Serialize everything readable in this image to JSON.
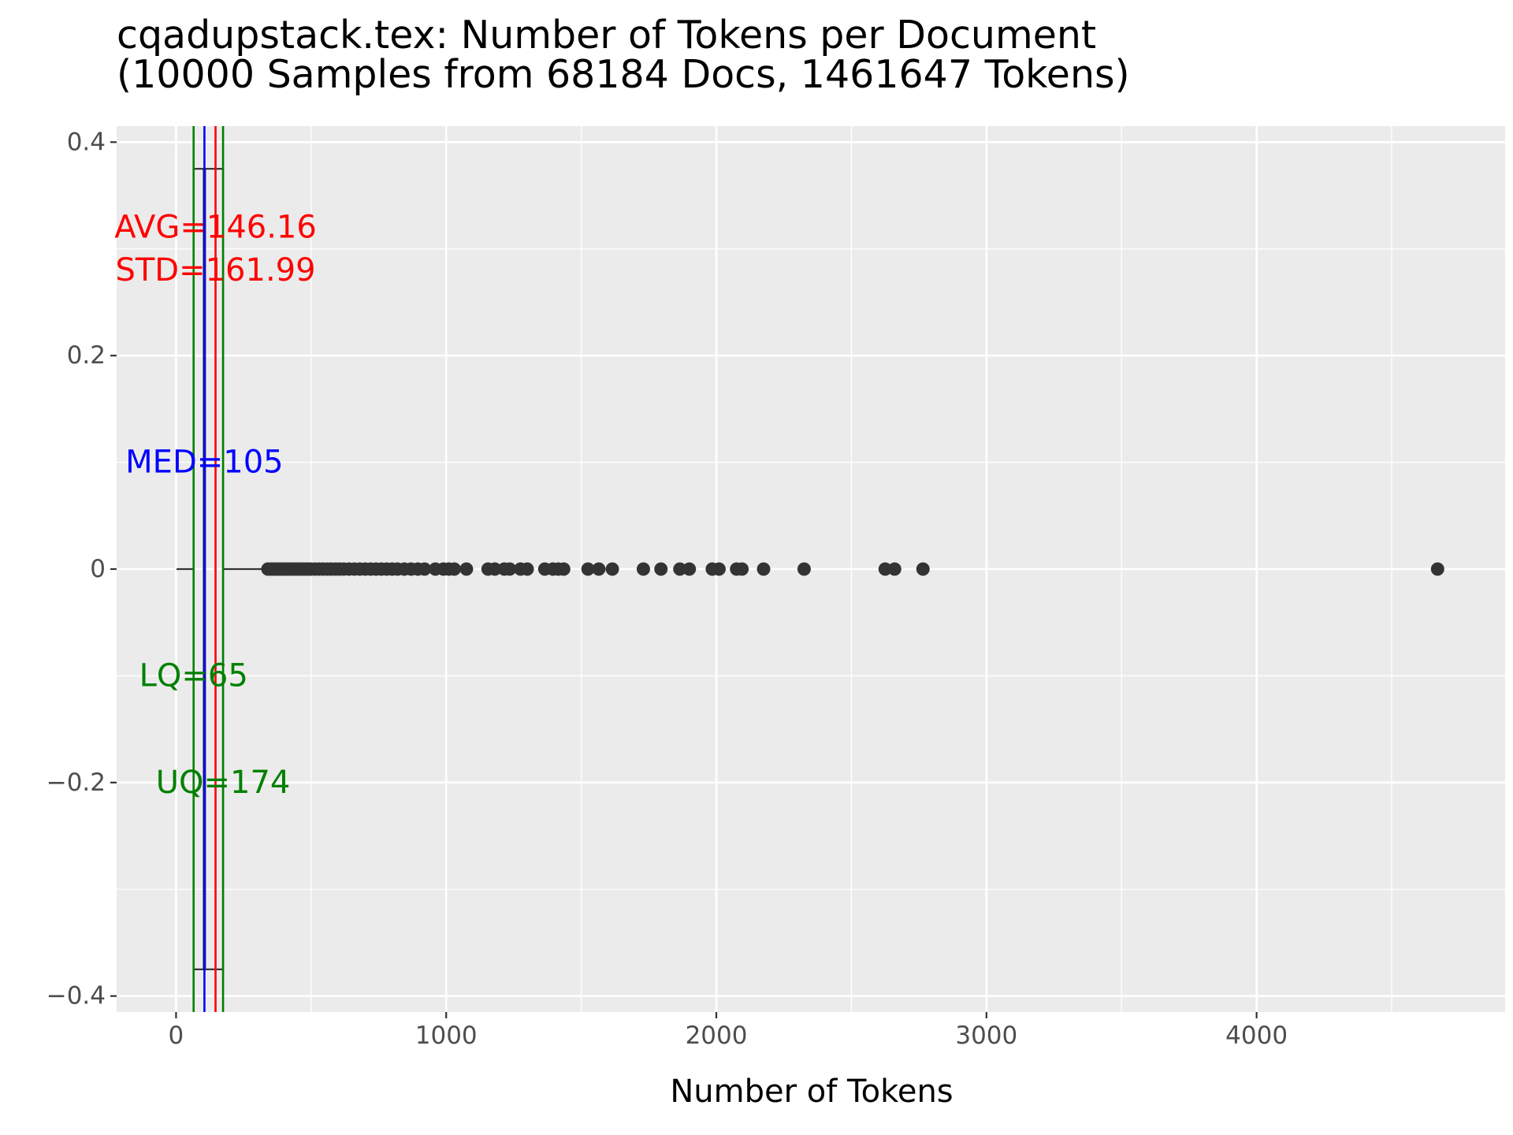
{
  "chart_data": {
    "type": "boxplot",
    "title": "cqadupstack.tex: Number of Tokens per Document",
    "subtitle": "(10000 Samples from 68184 Docs, 1461647 Tokens)",
    "xlabel": "Number of Tokens",
    "ylabel": "",
    "xlim": [
      -220,
      4920
    ],
    "ylim": [
      -0.415,
      0.415
    ],
    "x_ticks": [
      0,
      1000,
      2000,
      3000,
      4000
    ],
    "x_tick_labels": [
      "0",
      "1000",
      "2000",
      "3000",
      "4000"
    ],
    "y_ticks": [
      -0.4,
      -0.2,
      0,
      0.2,
      0.4
    ],
    "y_tick_labels": [
      "−0.4",
      "−0.2",
      "0",
      "0.2",
      "0.4"
    ],
    "grid": true,
    "panel_background": "#ebebeb",
    "box": {
      "whisker_low": 2,
      "q1": 65,
      "median": 105,
      "q3": 174,
      "whisker_high": 337,
      "y_center": 0
    },
    "outliers": [
      340,
      350,
      360,
      370,
      380,
      390,
      400,
      410,
      420,
      430,
      440,
      450,
      460,
      470,
      480,
      490,
      500,
      515,
      530,
      545,
      560,
      575,
      590,
      605,
      620,
      640,
      660,
      680,
      700,
      720,
      740,
      760,
      780,
      800,
      820,
      845,
      870,
      895,
      920,
      960,
      990,
      1010,
      1030,
      1075,
      1155,
      1180,
      1215,
      1235,
      1275,
      1300,
      1365,
      1395,
      1415,
      1435,
      1525,
      1565,
      1615,
      1730,
      1795,
      1865,
      1900,
      1985,
      2010,
      2075,
      2095,
      2175,
      2325,
      2625,
      2660,
      2765,
      4670
    ],
    "reference_lines": [
      {
        "name": "AVG",
        "value": 146.16,
        "color": "#ff0000"
      },
      {
        "name": "MED",
        "value": 105,
        "color": "#0000ff"
      },
      {
        "name": "LQ",
        "value": 65,
        "color": "#008000"
      },
      {
        "name": "UQ",
        "value": 174,
        "color": "#008000"
      }
    ],
    "annotations": [
      {
        "text": "AVG=146.16",
        "x": 146.16,
        "y": 0.32,
        "color": "#ff0000"
      },
      {
        "text": "STD=161.99",
        "x": 146.16,
        "y": 0.28,
        "color": "#ff0000"
      },
      {
        "text": "MED=105",
        "x": 105,
        "y": 0.1,
        "color": "#0000ff"
      },
      {
        "text": "LQ=65",
        "x": 65,
        "y": -0.1,
        "color": "#008000"
      },
      {
        "text": "UQ=174",
        "x": 174,
        "y": -0.2,
        "color": "#008000"
      }
    ],
    "colors": {
      "box_line": "#333333",
      "point": "#333333",
      "tick_label": "#4d4d4d",
      "grid_line": "#ffffff"
    }
  }
}
